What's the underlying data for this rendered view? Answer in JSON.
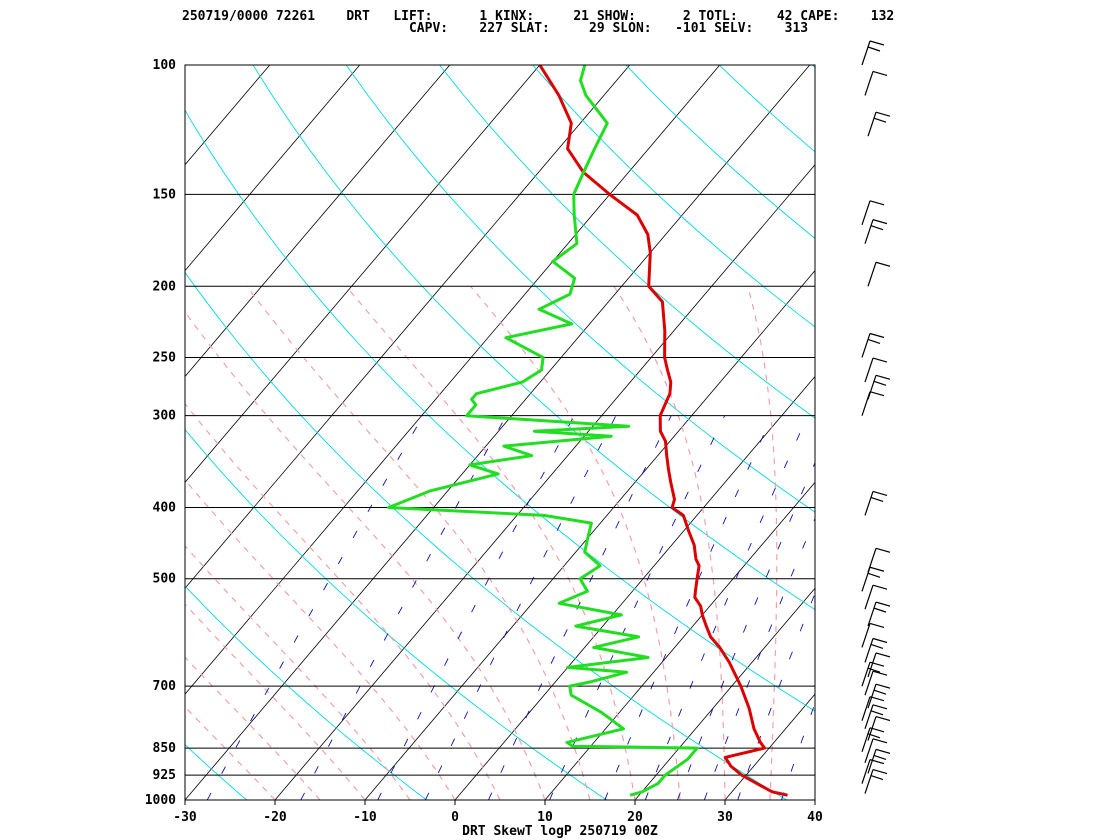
{
  "header": {
    "line1": "250719/0000 72261    DRT   LIFT:      1 KINX:     21 SHOW:      2 TOTL:     42 CAPE:    132",
    "line2": "                             CAPV:    227 SLAT:     29 SLON:   -101 SELV:    313"
  },
  "colors": {
    "temperature": "#dd0000",
    "dewpoint": "#22dd22",
    "isotherm": "#000000",
    "dry_adiabat": "#00d8e0",
    "moist_adiabat": "#f4a0a8",
    "mixing_ratio": "#1010b0",
    "wind_barb": "#000000"
  },
  "chart_data": {
    "type": "line",
    "title": "DRT SkewT logP 250719 00Z",
    "xlabel": "",
    "ylabel": "",
    "xlim": [
      -30,
      40
    ],
    "ylim": [
      1000,
      100
    ],
    "y_scale": "log",
    "x_ticks": [
      "-30",
      "-20",
      "-10",
      "0",
      "10",
      "20",
      "30",
      "40"
    ],
    "y_ticks": [
      "100",
      "150",
      "200",
      "250",
      "300",
      "400",
      "500",
      "700",
      "850",
      "925",
      "1000"
    ],
    "y_tick_values": [
      100,
      150,
      200,
      250,
      300,
      400,
      500,
      700,
      850,
      925,
      1000
    ],
    "series": [
      {
        "key": "temperature",
        "points": [
          [
            985,
            36.5
          ],
          [
            975,
            34.5
          ],
          [
            950,
            32
          ],
          [
            925,
            29.5
          ],
          [
            900,
            27.5
          ],
          [
            875,
            26
          ],
          [
            850,
            29.5
          ],
          [
            835,
            28.5
          ],
          [
            800,
            26.5
          ],
          [
            750,
            24
          ],
          [
            700,
            21
          ],
          [
            650,
            17.5
          ],
          [
            620,
            15
          ],
          [
            600,
            13
          ],
          [
            580,
            11.5
          ],
          [
            560,
            10
          ],
          [
            545,
            9
          ],
          [
            530,
            7.5
          ],
          [
            520,
            7
          ],
          [
            500,
            6
          ],
          [
            480,
            5
          ],
          [
            470,
            4
          ],
          [
            450,
            2.5
          ],
          [
            430,
            0.5
          ],
          [
            410,
            -1.5
          ],
          [
            400,
            -3.5
          ],
          [
            390,
            -4
          ],
          [
            370,
            -6
          ],
          [
            355,
            -7.5
          ],
          [
            340,
            -9
          ],
          [
            325,
            -10.5
          ],
          [
            315,
            -12
          ],
          [
            300,
            -13.5
          ],
          [
            290,
            -14
          ],
          [
            280,
            -14.5
          ],
          [
            270,
            -15.5
          ],
          [
            260,
            -17
          ],
          [
            250,
            -18.5
          ],
          [
            230,
            -21
          ],
          [
            210,
            -24
          ],
          [
            200,
            -27
          ],
          [
            180,
            -30
          ],
          [
            170,
            -32
          ],
          [
            160,
            -35
          ],
          [
            150,
            -40
          ],
          [
            140,
            -45
          ],
          [
            130,
            -49
          ],
          [
            120,
            -51
          ],
          [
            110,
            -55
          ],
          [
            100,
            -60
          ]
        ]
      },
      {
        "key": "dewpoint",
        "points": [
          [
            985,
            19
          ],
          [
            975,
            20
          ],
          [
            950,
            21
          ],
          [
            925,
            21
          ],
          [
            880,
            22
          ],
          [
            850,
            22
          ],
          [
            845,
            8
          ],
          [
            835,
            7
          ],
          [
            800,
            12
          ],
          [
            760,
            8
          ],
          [
            720,
            3
          ],
          [
            700,
            2
          ],
          [
            690,
            4
          ],
          [
            670,
            7
          ],
          [
            660,
            0
          ],
          [
            640,
            8
          ],
          [
            620,
            1
          ],
          [
            600,
            5
          ],
          [
            580,
            -3
          ],
          [
            560,
            1
          ],
          [
            540,
            -7
          ],
          [
            520,
            -5
          ],
          [
            500,
            -7
          ],
          [
            480,
            -6
          ],
          [
            460,
            -9
          ],
          [
            440,
            -10
          ],
          [
            420,
            -11
          ],
          [
            410,
            -17
          ],
          [
            400,
            -35
          ],
          [
            380,
            -32
          ],
          [
            360,
            -26
          ],
          [
            350,
            -30
          ],
          [
            340,
            -24
          ],
          [
            330,
            -28
          ],
          [
            320,
            -17
          ],
          [
            315,
            -26
          ],
          [
            310,
            -16
          ],
          [
            300,
            -35
          ],
          [
            290,
            -35
          ],
          [
            285,
            -36
          ],
          [
            280,
            -36
          ],
          [
            270,
            -32
          ],
          [
            260,
            -31
          ],
          [
            250,
            -32
          ],
          [
            235,
            -38
          ],
          [
            225,
            -32
          ],
          [
            215,
            -37
          ],
          [
            205,
            -35
          ],
          [
            195,
            -36
          ],
          [
            185,
            -40
          ],
          [
            175,
            -39
          ],
          [
            160,
            -42
          ],
          [
            150,
            -44
          ],
          [
            140,
            -45
          ],
          [
            130,
            -46
          ],
          [
            120,
            -47
          ],
          [
            110,
            -52
          ],
          [
            105,
            -54
          ],
          [
            100,
            -55
          ]
        ]
      }
    ],
    "winds_note": "wind barbs plotted along right side (decorative reading)"
  }
}
